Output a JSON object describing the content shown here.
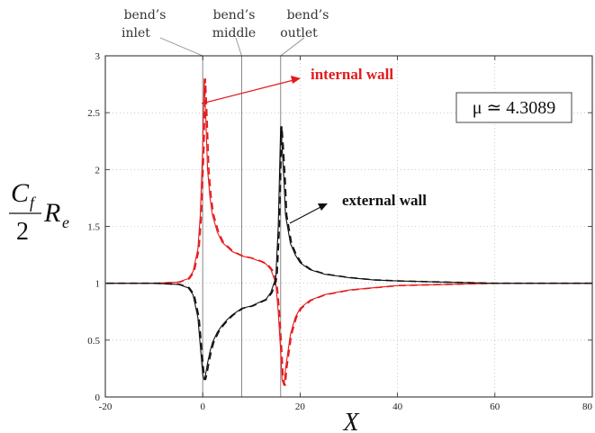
{
  "chart_data": {
    "type": "line",
    "xlabel": "X",
    "ylabel": {
      "num": "C",
      "num_sub": "f",
      "den": "2",
      "tail": "R",
      "tail_sub": "e"
    },
    "xlim": [
      -20,
      80
    ],
    "ylim": [
      0,
      3
    ],
    "xticks": [
      "-20",
      "0",
      "20",
      "40",
      "60",
      "80"
    ],
    "yticks": [
      "0",
      "0.5",
      "1",
      "1.5",
      "2",
      "2.5",
      "3"
    ],
    "vlines": [
      {
        "x": 0,
        "label_line1": "bend’s",
        "label_line2": "inlet"
      },
      {
        "x": 8,
        "label_line1": "bend’s",
        "label_line2": "middle"
      },
      {
        "x": 16,
        "label_line1": "bend’s",
        "label_line2": "outlet"
      }
    ],
    "annotations": [
      {
        "text": "internal wall",
        "color": "#e41a1c"
      },
      {
        "text": "external wall",
        "color": "#111111"
      }
    ],
    "param_box": "μ ≃ 4.3089",
    "series": [
      {
        "name": "internal wall",
        "color": "#e41a1c",
        "style": "solid+dashed",
        "x": [
          -20,
          -10,
          -5,
          -3,
          -2,
          -1,
          -0.5,
          0,
          0.3,
          0.6,
          1,
          1.5,
          2,
          3,
          4,
          5,
          6,
          8,
          10,
          12,
          13,
          14,
          15,
          15.5,
          16,
          16.3,
          16.7,
          17,
          18,
          19,
          20,
          22,
          25,
          30,
          35,
          40,
          50,
          60,
          70,
          80
        ],
        "y": [
          1.0,
          1.0,
          1.01,
          1.04,
          1.1,
          1.3,
          1.6,
          2.2,
          2.8,
          2.5,
          2.0,
          1.75,
          1.6,
          1.45,
          1.36,
          1.32,
          1.28,
          1.24,
          1.22,
          1.19,
          1.17,
          1.12,
          1.0,
          0.75,
          0.4,
          0.15,
          0.1,
          0.25,
          0.55,
          0.7,
          0.78,
          0.85,
          0.9,
          0.94,
          0.96,
          0.98,
          0.99,
          1.0,
          1.0,
          1.0
        ]
      },
      {
        "name": "external wall",
        "color": "#111111",
        "style": "solid+dashed",
        "x": [
          -20,
          -10,
          -5,
          -3,
          -2,
          -1,
          -0.5,
          0,
          0.3,
          0.6,
          1,
          1.5,
          2,
          3,
          4,
          5,
          6,
          8,
          10,
          12,
          13,
          14,
          15,
          15.5,
          16,
          16.3,
          16.7,
          17,
          18,
          19,
          20,
          22,
          25,
          30,
          35,
          40,
          50,
          60,
          70,
          80
        ],
        "y": [
          1.0,
          1.0,
          0.99,
          0.96,
          0.9,
          0.7,
          0.45,
          0.2,
          0.15,
          0.2,
          0.3,
          0.4,
          0.48,
          0.57,
          0.63,
          0.68,
          0.72,
          0.78,
          0.8,
          0.84,
          0.86,
          0.92,
          1.05,
          1.5,
          2.38,
          2.2,
          1.9,
          1.6,
          1.35,
          1.25,
          1.18,
          1.12,
          1.08,
          1.05,
          1.03,
          1.02,
          1.01,
          1.0,
          1.0,
          1.0
        ]
      }
    ]
  }
}
